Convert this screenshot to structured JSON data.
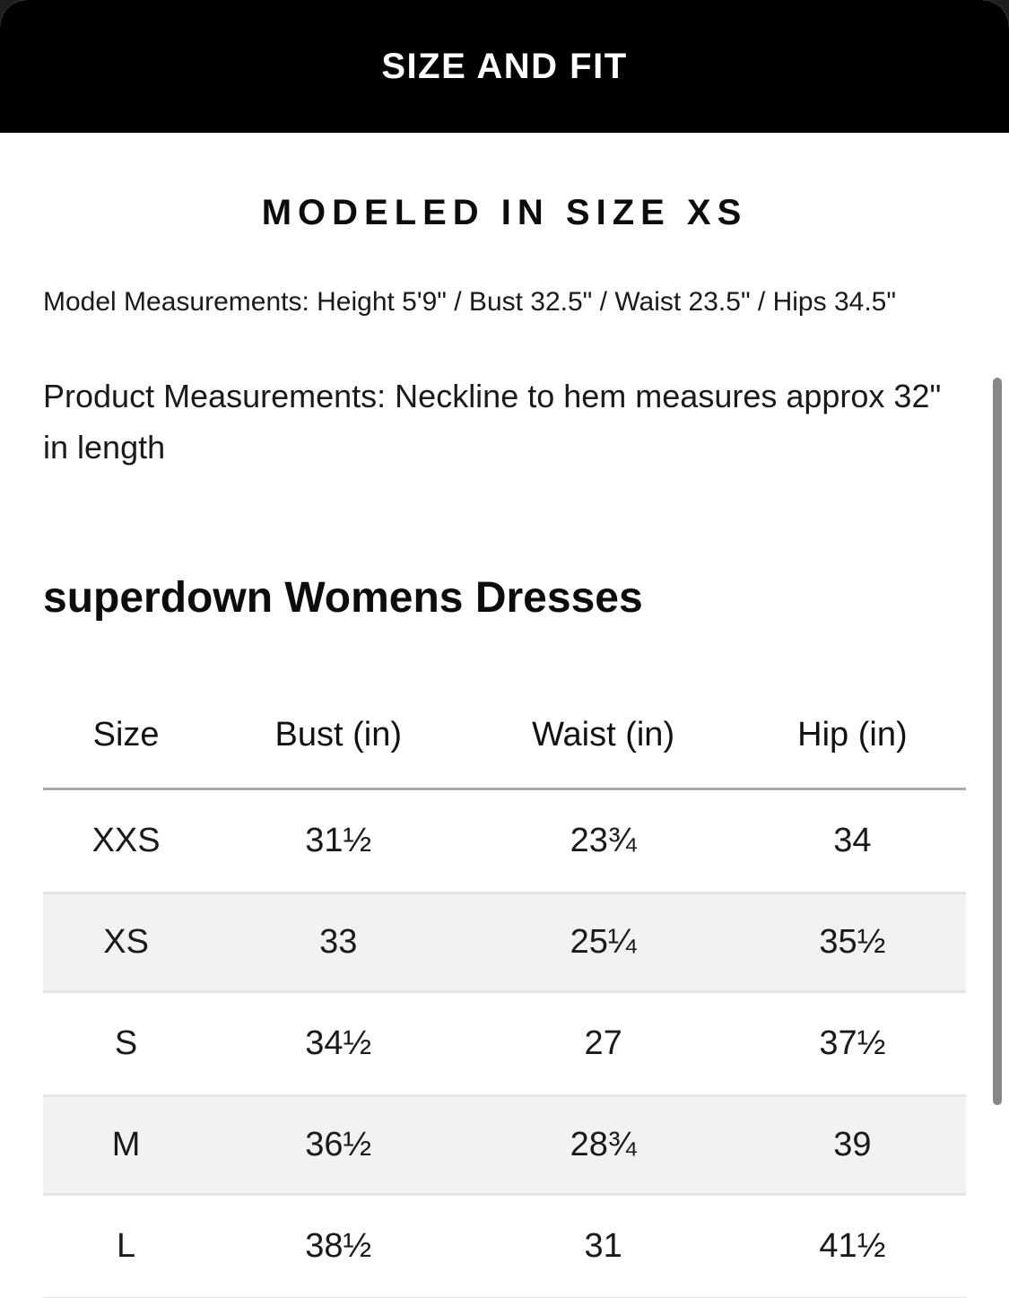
{
  "sheet": {
    "title": "SIZE AND FIT"
  },
  "fit_section": {
    "heading": "MODELED IN SIZE XS",
    "model_measurements": "Model Measurements: Height 5'9\" / Bust 32.5\" / Waist 23.5\" / Hips 34.5\"",
    "product_measurements_line1": "Product Measurements: Neckline to hem measures approx 32\"",
    "product_measurements_line2": "in length"
  },
  "size_chart": {
    "title": "superdown Womens Dresses",
    "columns": [
      "Size",
      "Bust (in)",
      "Waist (in)",
      "Hip (in)"
    ],
    "rows": [
      {
        "size": "XXS",
        "bust": "31½",
        "waist": "23¾",
        "hip": "34"
      },
      {
        "size": "XS",
        "bust": "33",
        "waist": "25¼",
        "hip": "35½"
      },
      {
        "size": "S",
        "bust": "34½",
        "waist": "27",
        "hip": "37½"
      },
      {
        "size": "M",
        "bust": "36½",
        "waist": "28¾",
        "hip": "39"
      },
      {
        "size": "L",
        "bust": "38½",
        "waist": "31",
        "hip": "41½"
      }
    ]
  },
  "colors": {
    "header_bg": "#000000",
    "header_text": "#ffffff",
    "row_alt_bg": "#f2f2f0",
    "row_edge": "#e4e4e2",
    "divider": "#ababab",
    "scrollbar_thumb": "#878787"
  }
}
